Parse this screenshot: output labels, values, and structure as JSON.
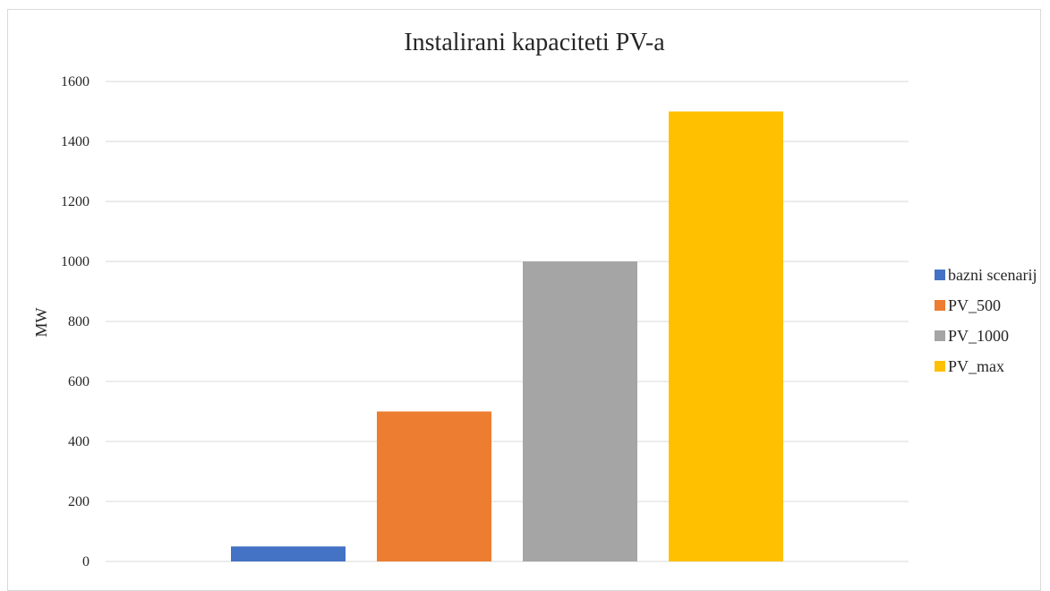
{
  "chart_data": {
    "type": "bar",
    "title": "Instalirani kapaciteti PV-a",
    "xlabel": "",
    "ylabel": "MW",
    "ylim": [
      0,
      1600
    ],
    "yticks": [
      0,
      200,
      400,
      600,
      800,
      1000,
      1200,
      1400,
      1600
    ],
    "grid": true,
    "legend_position": "right",
    "series": [
      {
        "name": "bazni scenarij",
        "values": [
          50
        ],
        "color": "#4472C4"
      },
      {
        "name": "PV_500",
        "values": [
          500
        ],
        "color": "#ED7D31"
      },
      {
        "name": "PV_1000",
        "values": [
          1000
        ],
        "color": "#A5A5A5"
      },
      {
        "name": "PV_max",
        "values": [
          1500
        ],
        "color": "#FFC000"
      }
    ]
  }
}
